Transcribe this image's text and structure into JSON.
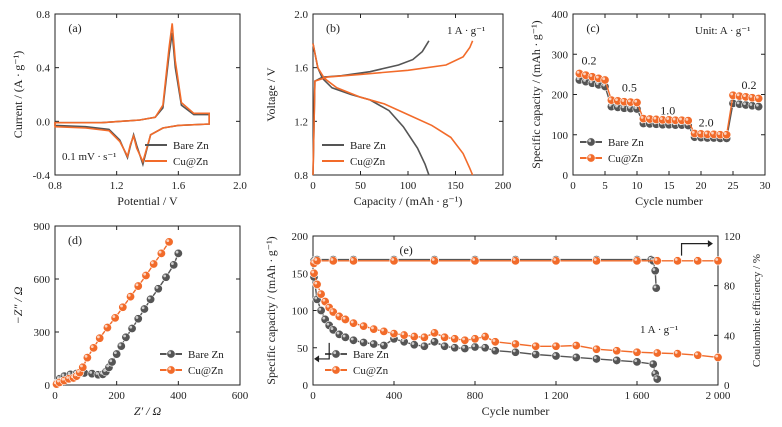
{
  "colors": {
    "bare": "#555555",
    "cu": "#f26b2a",
    "axis": "#222222"
  },
  "chart_data": [
    {
      "id": "a",
      "type": "line",
      "panel_label": "(a)",
      "xlabel": "Potential / V",
      "ylabel": "Current / (A · g⁻¹)",
      "xlim": [
        0.8,
        2.0
      ],
      "ylim": [
        -0.4,
        0.8
      ],
      "xticks": [
        0.8,
        1.2,
        1.6,
        2.0
      ],
      "xtick_labels": [
        "0.8",
        "1.2",
        "1.6",
        "2.0"
      ],
      "yticks": [
        -0.4,
        0.0,
        0.4,
        0.8
      ],
      "ytick_labels": [
        "-0.4",
        "0.0",
        "0.4",
        "0.8"
      ],
      "annotation": "0.1 mV · s⁻¹",
      "legend": "bottom-right",
      "series": [
        {
          "name": "Bare Zn",
          "color": "#555555",
          "closed": true,
          "points": [
            [
              0.8,
              -0.03
            ],
            [
              1.0,
              -0.04
            ],
            [
              1.15,
              -0.06
            ],
            [
              1.22,
              -0.14
            ],
            [
              1.27,
              -0.27
            ],
            [
              1.29,
              -0.18
            ],
            [
              1.31,
              -0.1
            ],
            [
              1.33,
              -0.18
            ],
            [
              1.37,
              -0.32
            ],
            [
              1.42,
              -0.1
            ],
            [
              1.5,
              -0.05
            ],
            [
              1.6,
              -0.03
            ],
            [
              1.8,
              -0.02
            ],
            [
              1.8,
              0.05
            ],
            [
              1.7,
              0.05
            ],
            [
              1.62,
              0.12
            ],
            [
              1.58,
              0.4
            ],
            [
              1.56,
              0.66
            ],
            [
              1.54,
              0.5
            ],
            [
              1.5,
              0.1
            ],
            [
              1.45,
              0.03
            ],
            [
              1.35,
              0.01
            ],
            [
              1.1,
              -0.01
            ],
            [
              0.9,
              -0.01
            ],
            [
              0.8,
              -0.01
            ]
          ]
        },
        {
          "name": "Cu@Zn",
          "color": "#f26b2a",
          "closed": true,
          "points": [
            [
              0.8,
              -0.04
            ],
            [
              1.0,
              -0.05
            ],
            [
              1.15,
              -0.07
            ],
            [
              1.22,
              -0.15
            ],
            [
              1.27,
              -0.26
            ],
            [
              1.29,
              -0.17
            ],
            [
              1.31,
              -0.11
            ],
            [
              1.33,
              -0.2
            ],
            [
              1.37,
              -0.3
            ],
            [
              1.42,
              -0.1
            ],
            [
              1.5,
              -0.05
            ],
            [
              1.6,
              -0.03
            ],
            [
              1.8,
              -0.02
            ],
            [
              1.8,
              0.06
            ],
            [
              1.7,
              0.06
            ],
            [
              1.62,
              0.14
            ],
            [
              1.58,
              0.45
            ],
            [
              1.56,
              0.73
            ],
            [
              1.54,
              0.55
            ],
            [
              1.5,
              0.12
            ],
            [
              1.45,
              0.03
            ],
            [
              1.35,
              0.01
            ],
            [
              1.1,
              -0.01
            ],
            [
              0.9,
              -0.01
            ],
            [
              0.8,
              -0.01
            ]
          ]
        }
      ]
    },
    {
      "id": "b",
      "type": "line",
      "panel_label": "(b)",
      "xlabel": "Capacity / (mAh · g⁻¹)",
      "ylabel": "Voltage / V",
      "xlim": [
        0,
        200
      ],
      "ylim": [
        0.8,
        2.0
      ],
      "xticks": [
        0,
        50,
        100,
        150,
        200
      ],
      "xtick_labels": [
        "0",
        "50",
        "100",
        "150",
        "200"
      ],
      "yticks": [
        0.8,
        1.2,
        1.6,
        2.0
      ],
      "ytick_labels": [
        "0.8",
        "1.2",
        "1.6",
        "2.0"
      ],
      "annotation": "1 A · g⁻¹",
      "legend": "bottom-left",
      "series": [
        {
          "name": "Bare Zn",
          "color": "#555555",
          "points": [
            [
              0,
              1.78
            ],
            [
              5,
              1.6
            ],
            [
              10,
              1.52
            ],
            [
              20,
              1.45
            ],
            [
              40,
              1.4
            ],
            [
              60,
              1.36
            ],
            [
              80,
              1.28
            ],
            [
              95,
              1.16
            ],
            [
              110,
              1.0
            ],
            [
              118,
              0.88
            ],
            [
              122,
              0.8
            ]
          ],
          "charge": [
            [
              0,
              0.8
            ],
            [
              2,
              1.5
            ],
            [
              10,
              1.53
            ],
            [
              30,
              1.54
            ],
            [
              60,
              1.57
            ],
            [
              90,
              1.62
            ],
            [
              105,
              1.66
            ],
            [
              115,
              1.72
            ],
            [
              122,
              1.8
            ]
          ]
        },
        {
          "name": "Cu@Zn",
          "color": "#f26b2a",
          "points": [
            [
              0,
              1.78
            ],
            [
              5,
              1.6
            ],
            [
              12,
              1.52
            ],
            [
              25,
              1.45
            ],
            [
              50,
              1.38
            ],
            [
              75,
              1.33
            ],
            [
              100,
              1.25
            ],
            [
              125,
              1.17
            ],
            [
              145,
              1.08
            ],
            [
              158,
              0.96
            ],
            [
              165,
              0.85
            ],
            [
              168,
              0.8
            ]
          ],
          "charge": [
            [
              0,
              0.8
            ],
            [
              2,
              1.5
            ],
            [
              15,
              1.53
            ],
            [
              50,
              1.55
            ],
            [
              100,
              1.58
            ],
            [
              140,
              1.62
            ],
            [
              158,
              1.68
            ],
            [
              165,
              1.75
            ],
            [
              168,
              1.8
            ]
          ]
        }
      ]
    },
    {
      "id": "c",
      "type": "scatter",
      "panel_label": "(c)",
      "xlabel": "Cycle number",
      "ylabel": "Specific capacity / (mAh · g⁻¹)",
      "xlim": [
        0,
        30
      ],
      "ylim": [
        0,
        400
      ],
      "xticks": [
        0,
        5,
        10,
        15,
        20,
        25,
        30
      ],
      "xtick_labels": [
        "0",
        "5",
        "10",
        "15",
        "20",
        "25",
        "30"
      ],
      "yticks": [
        0,
        100,
        200,
        300,
        400
      ],
      "ytick_labels": [
        "0",
        "100",
        "200",
        "300",
        "400"
      ],
      "annotation": "Unit: A · g⁻¹",
      "rate_labels": [
        {
          "text": "0.2",
          "x": 2.5,
          "y": 275
        },
        {
          "text": "0.5",
          "x": 8.8,
          "y": 208
        },
        {
          "text": "1.0",
          "x": 14.8,
          "y": 150
        },
        {
          "text": "2.0",
          "x": 20.8,
          "y": 120
        },
        {
          "text": "0.2",
          "x": 27.5,
          "y": 214
        }
      ],
      "legend": "bottom-left",
      "series": [
        {
          "name": "Bare Zn",
          "color": "#555555",
          "x": [
            1,
            2,
            3,
            4,
            5,
            6,
            7,
            8,
            9,
            10,
            11,
            12,
            13,
            14,
            15,
            16,
            17,
            18,
            19,
            20,
            21,
            22,
            23,
            24,
            25,
            26,
            27,
            28,
            29
          ],
          "values": [
            236,
            232,
            228,
            224,
            220,
            170,
            168,
            166,
            165,
            164,
            128,
            127,
            126,
            125,
            125,
            124,
            124,
            123,
            94,
            93,
            92,
            92,
            91,
            91,
            178,
            176,
            174,
            172,
            170
          ]
        },
        {
          "name": "Cu@Zn",
          "color": "#f26b2a",
          "x": [
            1,
            2,
            3,
            4,
            5,
            6,
            7,
            8,
            9,
            10,
            11,
            12,
            13,
            14,
            15,
            16,
            17,
            18,
            19,
            20,
            21,
            22,
            23,
            24,
            25,
            26,
            27,
            28,
            29
          ],
          "values": [
            252,
            248,
            244,
            240,
            236,
            186,
            184,
            182,
            181,
            180,
            140,
            139,
            138,
            137,
            137,
            136,
            136,
            135,
            103,
            102,
            101,
            101,
            100,
            100,
            198,
            196,
            194,
            192,
            190
          ]
        }
      ]
    },
    {
      "id": "d",
      "type": "scatter",
      "panel_label": "(d)",
      "xlabel": "Z′ / Ω",
      "ylabel": "−Z″ / Ω",
      "xlim": [
        0,
        600
      ],
      "ylim": [
        0,
        900
      ],
      "xticks": [
        0,
        200,
        400,
        600
      ],
      "xtick_labels": [
        "0",
        "200",
        "400",
        "600"
      ],
      "yticks": [
        0,
        300,
        600,
        900
      ],
      "ytick_labels": [
        "0",
        "300",
        "600",
        "900"
      ],
      "legend": "bottom-right",
      "series": [
        {
          "name": "Bare Zn",
          "color": "#555555",
          "x": [
            5,
            15,
            30,
            50,
            70,
            95,
            120,
            140,
            155,
            165,
            175,
            185,
            200,
            215,
            230,
            250,
            270,
            290,
            310,
            335,
            360,
            385,
            400
          ],
          "values": [
            10,
            35,
            50,
            60,
            65,
            68,
            64,
            58,
            60,
            75,
            100,
            130,
            175,
            220,
            270,
            320,
            375,
            430,
            485,
            545,
            610,
            680,
            745
          ]
        },
        {
          "name": "Cu@Zn",
          "color": "#f26b2a",
          "x": [
            5,
            15,
            30,
            45,
            60,
            70,
            80,
            90,
            105,
            125,
            145,
            170,
            195,
            220,
            245,
            270,
            295,
            320,
            345,
            370
          ],
          "values": [
            5,
            15,
            25,
            35,
            40,
            50,
            70,
            100,
            155,
            210,
            265,
            325,
            380,
            440,
            500,
            560,
            620,
            685,
            745,
            810
          ]
        }
      ]
    },
    {
      "id": "e",
      "type": "scatter",
      "panel_label": "(e)",
      "xlabel": "Cycle number",
      "ylabel": "Specific capacity / (mAh · g⁻¹)",
      "ylabel_right": "Coulombic efficiency / %",
      "xlim": [
        0,
        2000
      ],
      "ylim": [
        0,
        200
      ],
      "ylim_right": [
        0,
        120
      ],
      "xticks": [
        0,
        400,
        800,
        1200,
        1600,
        2000
      ],
      "xtick_labels": [
        "0",
        "400",
        "800",
        "1 200",
        "1 600",
        "2 000"
      ],
      "yticks": [
        0,
        50,
        100,
        150,
        200
      ],
      "ytick_labels": [
        "0",
        "50",
        "100",
        "150",
        "200"
      ],
      "yticks_right": [
        0,
        40,
        80,
        120
      ],
      "ytick_labels_right": [
        "0",
        "40",
        "80",
        "120"
      ],
      "annotation": "1 A · g⁻¹",
      "legend": "bottom-left",
      "series": [
        {
          "name": "Bare Zn",
          "color": "#555555",
          "x": [
            5,
            20,
            40,
            60,
            80,
            100,
            130,
            160,
            200,
            250,
            300,
            350,
            400,
            450,
            500,
            550,
            600,
            650,
            700,
            750,
            800,
            850,
            900,
            1000,
            1100,
            1200,
            1300,
            1400,
            1500,
            1600,
            1680,
            1690,
            1700
          ],
          "values": [
            145,
            115,
            100,
            88,
            80,
            74,
            68,
            64,
            60,
            57,
            55,
            53,
            62,
            58,
            54,
            52,
            58,
            52,
            50,
            49,
            51,
            50,
            46,
            44,
            41,
            39,
            37,
            35,
            33,
            31,
            28,
            15,
            8
          ]
        },
        {
          "name": "Cu@Zn",
          "color": "#f26b2a",
          "x": [
            5,
            20,
            40,
            60,
            80,
            100,
            130,
            160,
            200,
            250,
            300,
            350,
            400,
            450,
            500,
            550,
            600,
            650,
            700,
            750,
            800,
            850,
            900,
            1000,
            1100,
            1200,
            1300,
            1400,
            1500,
            1600,
            1700,
            1800,
            1900,
            2000
          ],
          "values": [
            150,
            135,
            122,
            112,
            104,
            98,
            92,
            88,
            83,
            79,
            75,
            72,
            69,
            67,
            65,
            64,
            70,
            64,
            62,
            60,
            62,
            65,
            58,
            55,
            52,
            52,
            53,
            48,
            46,
            44,
            43,
            42,
            40,
            37
          ]
        },
        {
          "name": "CE Bare Zn",
          "color": "#555555",
          "axis": "right",
          "x": [
            5,
            20,
            100,
            200,
            400,
            600,
            800,
            1000,
            1200,
            1400,
            1600,
            1670,
            1680,
            1690,
            1695
          ],
          "values": [
            100,
            101,
            101,
            101,
            101,
            101,
            101,
            101,
            101,
            101,
            101,
            101,
            100,
            92,
            78
          ]
        },
        {
          "name": "CE Cu@Zn",
          "color": "#f26b2a",
          "axis": "right",
          "x": [
            5,
            20,
            100,
            200,
            400,
            600,
            800,
            1000,
            1200,
            1400,
            1600,
            1700,
            1800,
            1900,
            2000
          ],
          "values": [
            98,
            100,
            100,
            100,
            100,
            100,
            100,
            100,
            100,
            100,
            100,
            100,
            100,
            100,
            100
          ]
        }
      ]
    }
  ]
}
